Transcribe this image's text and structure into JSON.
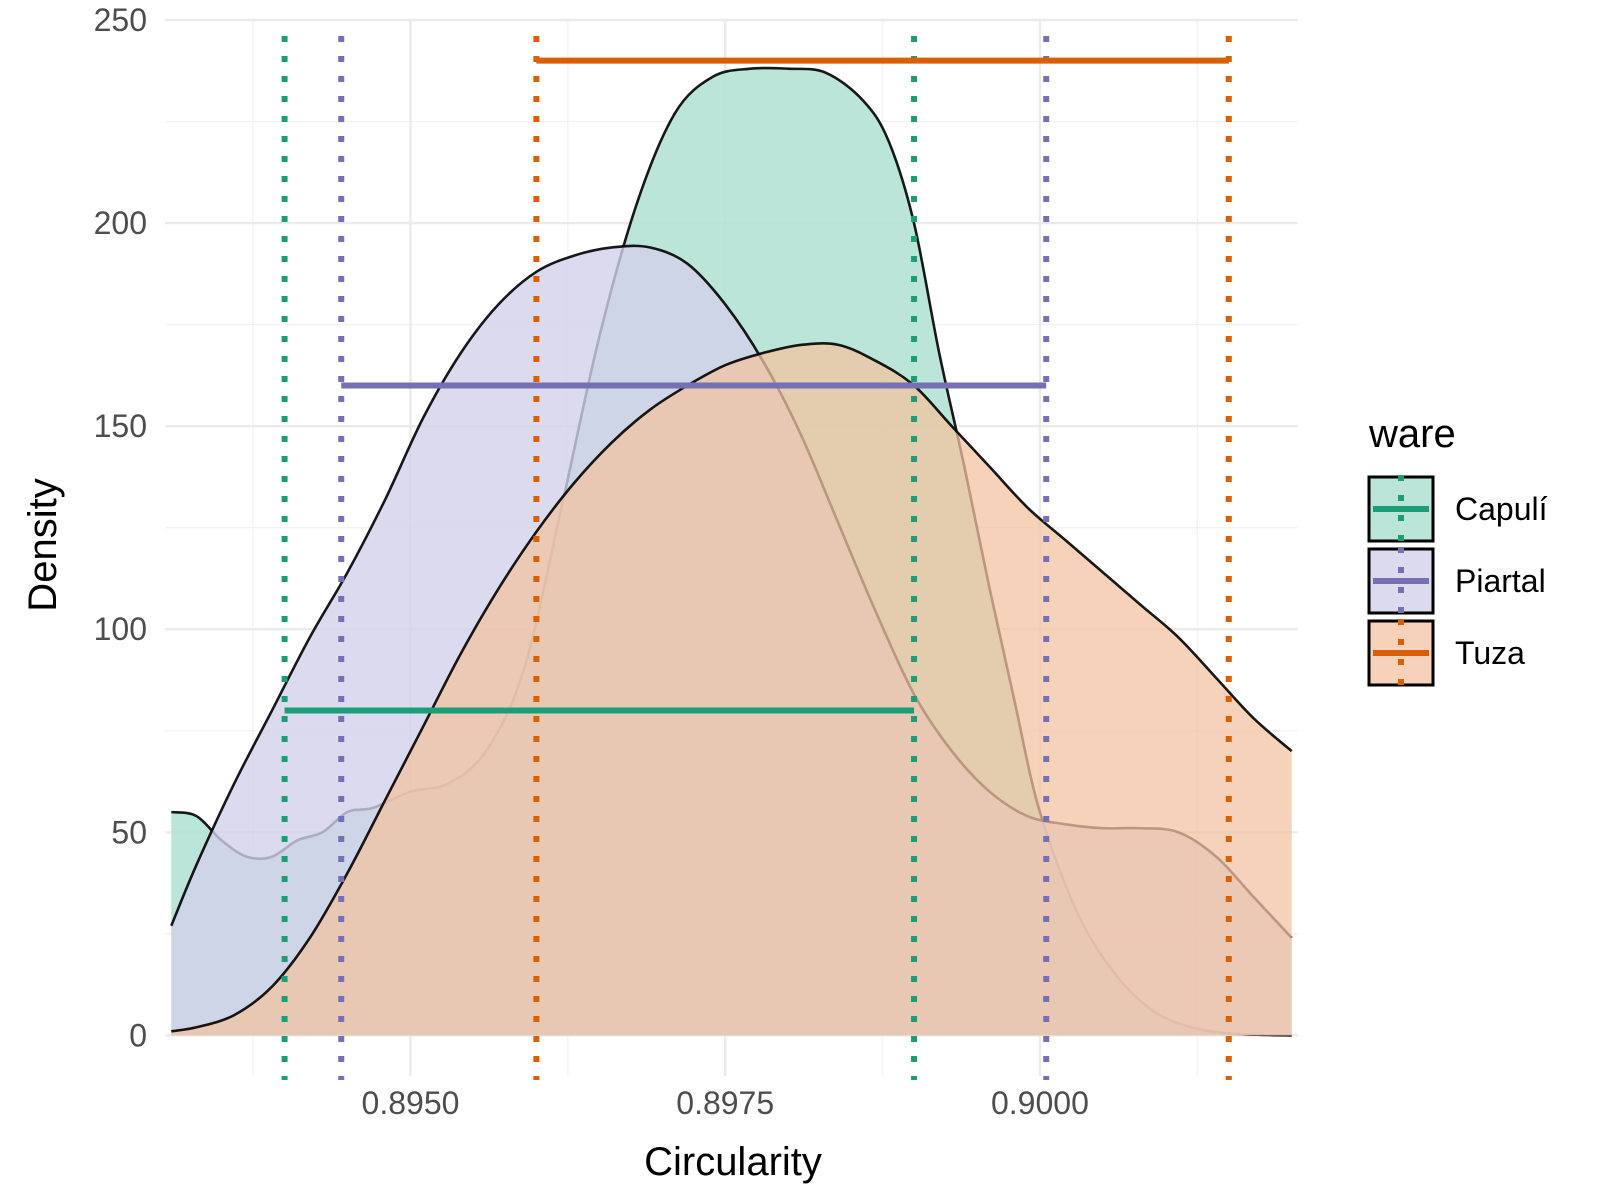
{
  "chart_data": {
    "type": "density",
    "xlabel": "Circularity",
    "ylabel": "Density",
    "xlim": [
      0.89305,
      0.90205
    ],
    "ylim": [
      -10,
      250
    ],
    "x_ticks": [
      0.895,
      0.8975,
      0.9
    ],
    "x_tick_labels": [
      "0.8950",
      "0.8975",
      "0.9000"
    ],
    "y_ticks": [
      0,
      50,
      100,
      150,
      200,
      250
    ],
    "y_tick_labels": [
      "0",
      "50",
      "100",
      "150",
      "200",
      "250"
    ],
    "grid": true,
    "legend": {
      "title": "ware",
      "position": "right",
      "entries": [
        "Capulí",
        "Piartal",
        "Tuza"
      ]
    },
    "series": [
      {
        "name": "Capulí",
        "color": "#1b9e77",
        "fill": "#b3e2d4",
        "fill_opacity": 0.9,
        "density": [
          [
            0.8931,
            55
          ],
          [
            0.8933,
            54
          ],
          [
            0.8935,
            48
          ],
          [
            0.8937,
            44
          ],
          [
            0.8939,
            44
          ],
          [
            0.8941,
            48
          ],
          [
            0.8943,
            50
          ],
          [
            0.8945,
            55
          ],
          [
            0.8947,
            56
          ],
          [
            0.895,
            60
          ],
          [
            0.8953,
            62
          ],
          [
            0.8956,
            70
          ],
          [
            0.8959,
            90
          ],
          [
            0.8962,
            130
          ],
          [
            0.8965,
            172
          ],
          [
            0.8968,
            205
          ],
          [
            0.8971,
            227
          ],
          [
            0.8974,
            236
          ],
          [
            0.8977,
            238
          ],
          [
            0.898,
            238
          ],
          [
            0.8983,
            237
          ],
          [
            0.8986,
            230
          ],
          [
            0.8988,
            220
          ],
          [
            0.899,
            200
          ],
          [
            0.8992,
            168
          ],
          [
            0.8994,
            140
          ],
          [
            0.8996,
            110
          ],
          [
            0.8998,
            82
          ],
          [
            0.9,
            55
          ],
          [
            0.9003,
            30
          ],
          [
            0.9006,
            15
          ],
          [
            0.9009,
            6
          ],
          [
            0.9012,
            2
          ],
          [
            0.9015,
            0.5
          ],
          [
            0.9018,
            0.1
          ],
          [
            0.902,
            0
          ]
        ],
        "interval": [
          0.894,
          0.899
        ],
        "interval_y": 80,
        "bounds": [
          0.894,
          0.899
        ]
      },
      {
        "name": "Piartal",
        "color": "#7570b3",
        "fill": "#d3d1ea",
        "fill_opacity": 0.8,
        "density": [
          [
            0.8931,
            27
          ],
          [
            0.8933,
            42
          ],
          [
            0.8936,
            62
          ],
          [
            0.8939,
            80
          ],
          [
            0.8942,
            98
          ],
          [
            0.8945,
            114
          ],
          [
            0.8948,
            132
          ],
          [
            0.8951,
            152
          ],
          [
            0.8954,
            168
          ],
          [
            0.8957,
            180
          ],
          [
            0.896,
            188
          ],
          [
            0.8963,
            192
          ],
          [
            0.8966,
            194
          ],
          [
            0.8969,
            194
          ],
          [
            0.8972,
            190
          ],
          [
            0.8975,
            180
          ],
          [
            0.8978,
            166
          ],
          [
            0.8981,
            148
          ],
          [
            0.8984,
            126
          ],
          [
            0.8987,
            104
          ],
          [
            0.899,
            84
          ],
          [
            0.8993,
            70
          ],
          [
            0.8996,
            60
          ],
          [
            0.8999,
            54
          ],
          [
            0.9002,
            52
          ],
          [
            0.9005,
            51
          ],
          [
            0.9008,
            51
          ],
          [
            0.9011,
            50
          ],
          [
            0.9014,
            44
          ],
          [
            0.9017,
            34
          ],
          [
            0.902,
            24
          ]
        ],
        "interval": [
          0.89445,
          0.90005
        ],
        "interval_y": 160,
        "bounds": [
          0.89445,
          0.90005
        ]
      },
      {
        "name": "Tuza",
        "color": "#d95f02",
        "fill": "#f2c3a2",
        "fill_opacity": 0.75,
        "density": [
          [
            0.8931,
            1
          ],
          [
            0.8933,
            2
          ],
          [
            0.8936,
            5
          ],
          [
            0.8939,
            12
          ],
          [
            0.8942,
            24
          ],
          [
            0.8945,
            40
          ],
          [
            0.8948,
            58
          ],
          [
            0.8951,
            76
          ],
          [
            0.8954,
            94
          ],
          [
            0.8957,
            110
          ],
          [
            0.896,
            124
          ],
          [
            0.8963,
            136
          ],
          [
            0.8966,
            146
          ],
          [
            0.8969,
            154
          ],
          [
            0.8972,
            160
          ],
          [
            0.8975,
            165
          ],
          [
            0.8978,
            168
          ],
          [
            0.8981,
            170
          ],
          [
            0.8984,
            170
          ],
          [
            0.8987,
            166
          ],
          [
            0.899,
            160
          ],
          [
            0.8993,
            150
          ],
          [
            0.8996,
            140
          ],
          [
            0.8999,
            130
          ],
          [
            0.9002,
            122
          ],
          [
            0.9005,
            114
          ],
          [
            0.9008,
            106
          ],
          [
            0.9011,
            98
          ],
          [
            0.9014,
            88
          ],
          [
            0.9017,
            78
          ],
          [
            0.902,
            70
          ]
        ],
        "interval": [
          0.896,
          0.9015
        ],
        "interval_y": 240,
        "bounds": [
          0.896,
          0.9015
        ]
      }
    ]
  }
}
